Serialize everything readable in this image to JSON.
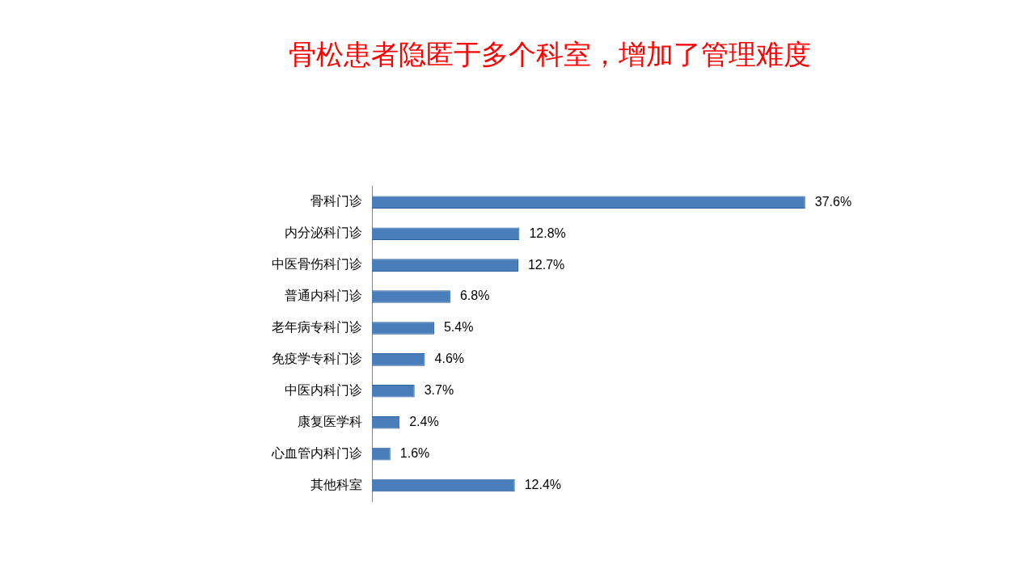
{
  "chart_data": {
    "type": "bar",
    "orientation": "horizontal",
    "title": "骨松患者隐匿于多个科室，增加了管理难度",
    "categories": [
      "骨科门诊",
      "内分泌科门诊",
      "中医骨伤科门诊",
      "普通内科门诊",
      "老年病专科门诊",
      "免疫学专科门诊",
      "中医内科门诊",
      "康复医学科",
      "心血管内科门诊",
      "其他科室"
    ],
    "values": [
      37.6,
      12.8,
      12.7,
      6.8,
      5.4,
      4.6,
      3.7,
      2.4,
      1.6,
      12.4
    ],
    "value_labels": [
      "37.6%",
      "12.8%",
      "12.7%",
      "6.8%",
      "5.4%",
      "4.6%",
      "3.7%",
      "2.4%",
      "1.6%",
      "12.4%"
    ],
    "color": "#4a7ebb",
    "grid": false,
    "legend": false
  }
}
